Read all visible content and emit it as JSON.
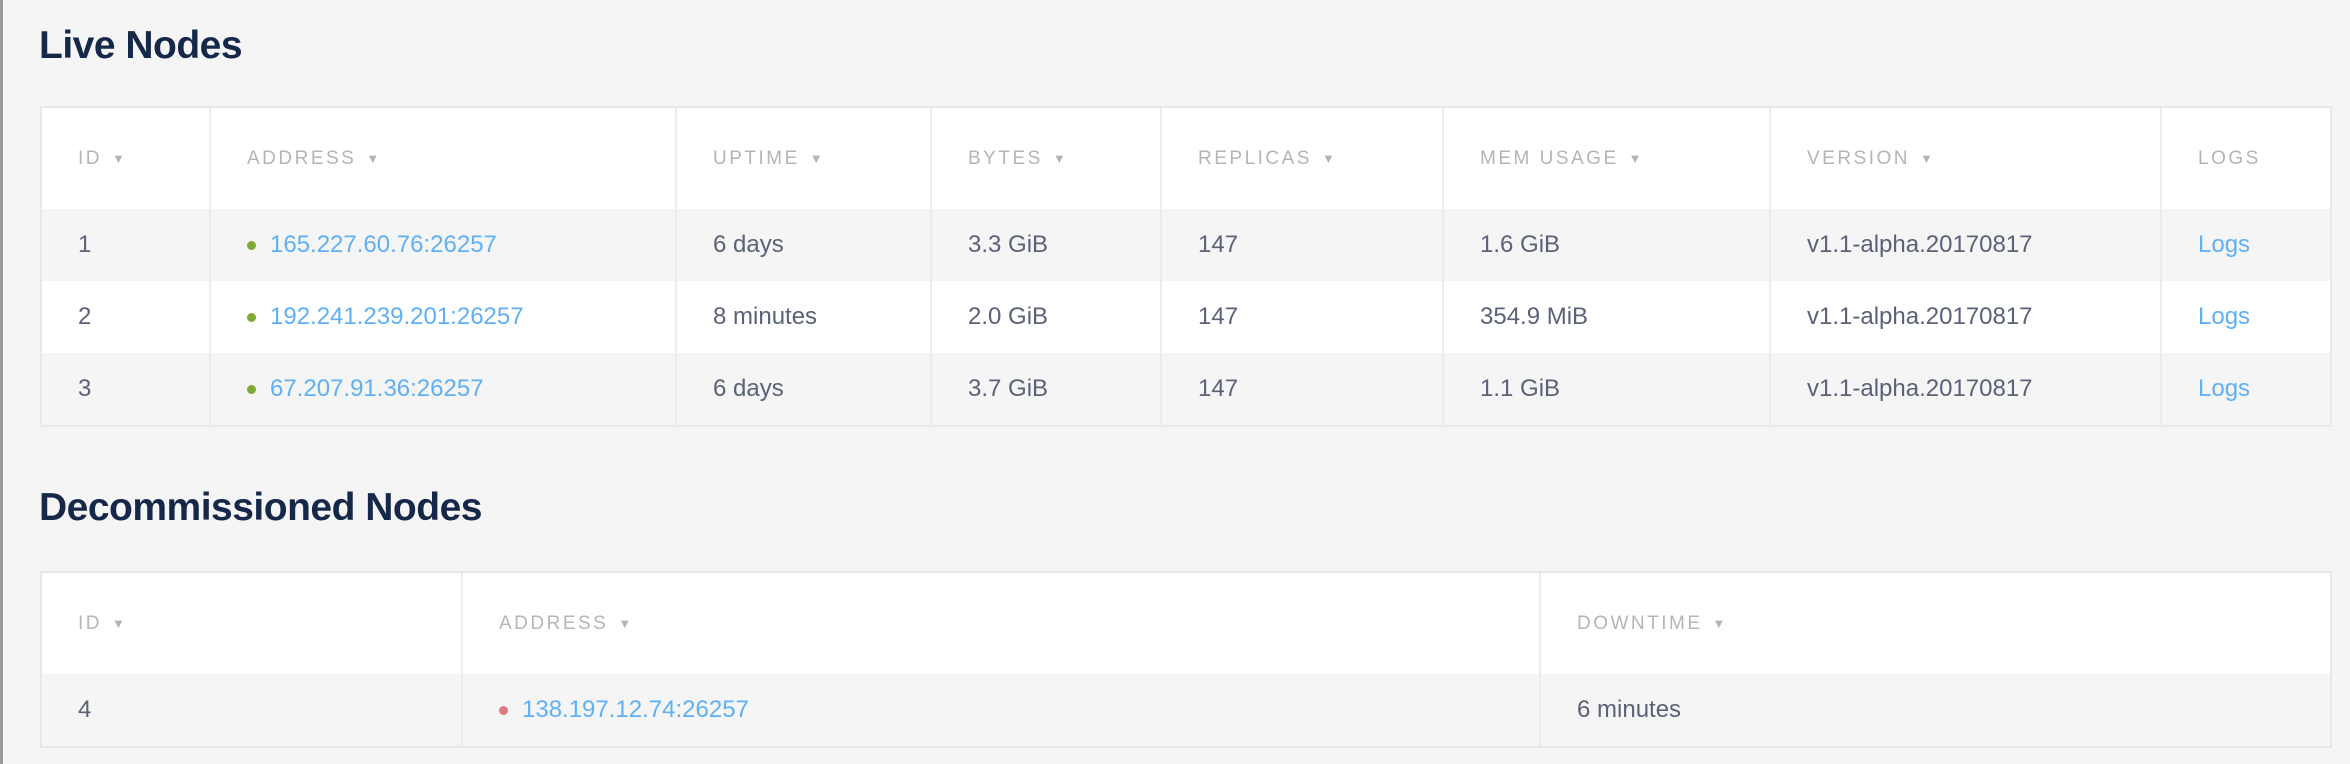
{
  "live": {
    "title": "Live Nodes",
    "columns": [
      {
        "label": "ID",
        "sortable": true
      },
      {
        "label": "Address",
        "sortable": true
      },
      {
        "label": "Uptime",
        "sortable": true
      },
      {
        "label": "Bytes",
        "sortable": true
      },
      {
        "label": "Replicas",
        "sortable": true
      },
      {
        "label": "Mem Usage",
        "sortable": true
      },
      {
        "label": "Version",
        "sortable": true
      },
      {
        "label": "Logs",
        "sortable": false
      }
    ],
    "sort_icon": "▼",
    "rows": [
      {
        "id": "1",
        "address": "165.227.60.76:26257",
        "uptime": "6 days",
        "bytes": "3.3 GiB",
        "replicas": "147",
        "mem": "1.6 GiB",
        "version": "v1.1-alpha.20170817",
        "logs": "Logs"
      },
      {
        "id": "2",
        "address": "192.241.239.201:26257",
        "uptime": "8 minutes",
        "bytes": "2.0 GiB",
        "replicas": "147",
        "mem": "354.9 MiB",
        "version": "v1.1-alpha.20170817",
        "logs": "Logs"
      },
      {
        "id": "3",
        "address": "67.207.91.36:26257",
        "uptime": "6 days",
        "bytes": "3.7 GiB",
        "replicas": "147",
        "mem": "1.1 GiB",
        "version": "v1.1-alpha.20170817",
        "logs": "Logs"
      }
    ]
  },
  "decommissioned": {
    "title": "Decommissioned Nodes",
    "columns": [
      {
        "label": "ID",
        "sortable": true
      },
      {
        "label": "Address",
        "sortable": true
      },
      {
        "label": "Downtime",
        "sortable": true
      }
    ],
    "rows": [
      {
        "id": "4",
        "address": "138.197.12.74:26257",
        "downtime": "6 minutes"
      }
    ]
  },
  "colors": {
    "live_status": "#7cab35",
    "dead_status": "#e07a80",
    "link": "#5fb0f5",
    "title": "#152849"
  }
}
